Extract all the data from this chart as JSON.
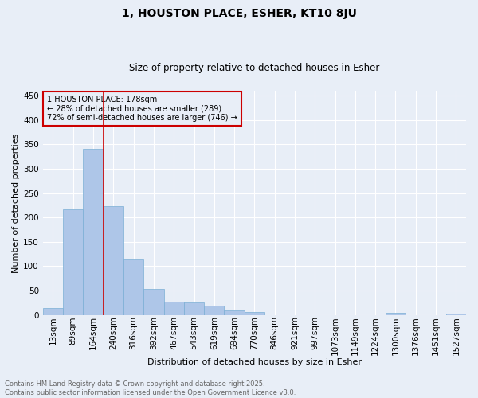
{
  "title": "1, HOUSTON PLACE, ESHER, KT10 8JU",
  "subtitle": "Size of property relative to detached houses in Esher",
  "xlabel": "Distribution of detached houses by size in Esher",
  "ylabel": "Number of detached properties",
  "categories": [
    "13sqm",
    "89sqm",
    "164sqm",
    "240sqm",
    "316sqm",
    "392sqm",
    "467sqm",
    "543sqm",
    "619sqm",
    "694sqm",
    "770sqm",
    "846sqm",
    "921sqm",
    "997sqm",
    "1073sqm",
    "1149sqm",
    "1224sqm",
    "1300sqm",
    "1376sqm",
    "1451sqm",
    "1527sqm"
  ],
  "values": [
    15,
    217,
    340,
    224,
    113,
    54,
    27,
    26,
    19,
    9,
    6,
    0,
    0,
    0,
    0,
    0,
    0,
    4,
    0,
    0,
    3
  ],
  "bar_color": "#aec6e8",
  "bar_edge_color": "#7aaed4",
  "background_color": "#e8eef7",
  "grid_color": "#ffffff",
  "vline_x": 2.5,
  "vline_color": "#cc0000",
  "annotation_text": "1 HOUSTON PLACE: 178sqm\n← 28% of detached houses are smaller (289)\n72% of semi-detached houses are larger (746) →",
  "annotation_box_color": "#cc0000",
  "footer_line1": "Contains HM Land Registry data © Crown copyright and database right 2025.",
  "footer_line2": "Contains public sector information licensed under the Open Government Licence v3.0.",
  "ylim": [
    0,
    460
  ],
  "yticks": [
    0,
    50,
    100,
    150,
    200,
    250,
    300,
    350,
    400,
    450
  ],
  "title_fontsize": 10,
  "subtitle_fontsize": 8.5,
  "axis_label_fontsize": 8,
  "tick_fontsize": 7.5,
  "annotation_fontsize": 7,
  "footer_fontsize": 6
}
